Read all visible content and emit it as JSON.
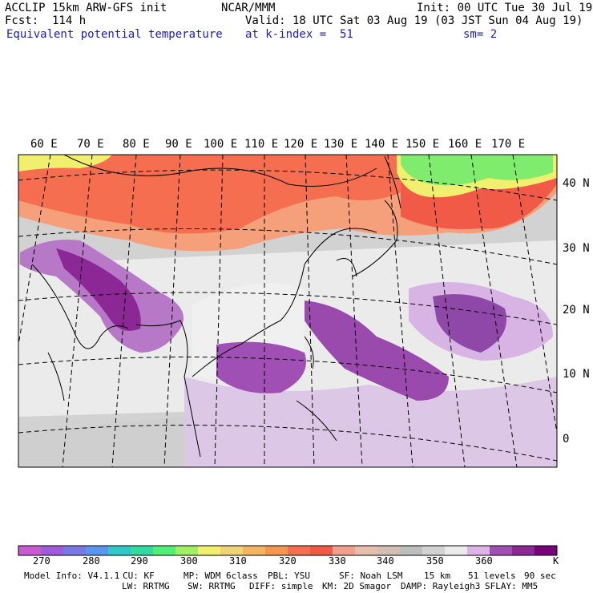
{
  "header": {
    "line1_left": "ACCLIP 15km ARW-GFS init",
    "line2_left": "Fcst:  114 h",
    "line3_left": "Equivalent potential temperature",
    "center_top": "NCAR/MMM",
    "init": "Init: 00 UTC Tue 30 Jul 19",
    "valid": "Valid: 18 UTC Sat 03 Aug 19 (03 JST Sun 04 Aug 19)",
    "level": "at k-index =  51",
    "smoothing": "sm= 2"
  },
  "map": {
    "lon_labels": [
      "60 E",
      "70 E",
      "80 E",
      "90 E",
      "100 E",
      "110 E",
      "120 E",
      "130 E",
      "140 E",
      "150 E",
      "160 E",
      "170 E"
    ],
    "lat_labels": [
      "40 N",
      "30 N",
      "20 N",
      "10 N",
      "0"
    ]
  },
  "colorbar": {
    "colors": [
      "#c85ad2",
      "#a05adc",
      "#7878e6",
      "#5a96f0",
      "#32c8c8",
      "#32dca0",
      "#50f078",
      "#a0f064",
      "#f0f06e",
      "#f0d278",
      "#f5b464",
      "#f59650",
      "#f56e50",
      "#f05a46",
      "#f0a08c",
      "#e6beaa",
      "#d2beb4",
      "#bebebe",
      "#d2d2d2",
      "#ebebeb",
      "#dcb4e6",
      "#a050b4",
      "#8c2896",
      "#780078"
    ],
    "labels": [
      "270",
      "280",
      "290",
      "300",
      "310",
      "320",
      "330",
      "340",
      "350",
      "360"
    ],
    "unit": "K"
  },
  "model_info": {
    "line1": [
      "Model Info: V4.1.1",
      "CU: KF",
      "MP: WDM 6class",
      "PBL: YSU",
      "SF: Noah LSM",
      "15 km",
      "51 levels",
      "90 sec"
    ],
    "line2": [
      "LW: RRTMG",
      "SW: RRTMG",
      "DIFF: simple",
      "KM: 2D Smagor",
      "DAMP: Rayleigh3",
      "SFLAY: MM5"
    ]
  }
}
